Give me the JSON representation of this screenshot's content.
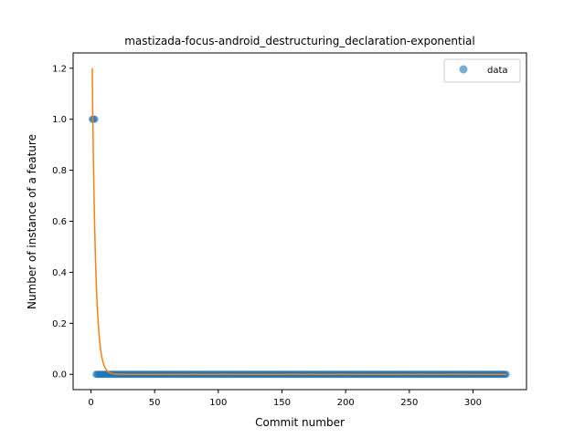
{
  "chart_data": {
    "type": "scatter",
    "title": "mastizada-focus-android_destructuring_declaration-exponential",
    "xlabel": "Commit number",
    "ylabel": "Number of instance of a feature",
    "xlim": [
      -14,
      342
    ],
    "ylim": [
      -0.06,
      1.26
    ],
    "xticks": [
      0,
      50,
      100,
      150,
      200,
      250,
      300
    ],
    "yticks": [
      0.0,
      0.2,
      0.4,
      0.6,
      0.8,
      1.0,
      1.2
    ],
    "ytick_labels": [
      "0.0",
      "0.2",
      "0.4",
      "0.6",
      "0.8",
      "1.0",
      "1.2"
    ],
    "grid": false,
    "legend_position": "top-right",
    "series": [
      {
        "name": "data",
        "kind": "scatter",
        "color": "#1f77b4",
        "segments": [
          {
            "x_start": 1,
            "x_end": 3,
            "y": 1.0
          },
          {
            "x_start": 4,
            "x_end": 326,
            "y": 0.0
          }
        ]
      },
      {
        "kind": "line",
        "color": "#ff7f0e",
        "function": "exponential",
        "a": 1.2,
        "b": 0.38,
        "x0": 1,
        "x_start": 1,
        "x_end": 326
      }
    ]
  }
}
